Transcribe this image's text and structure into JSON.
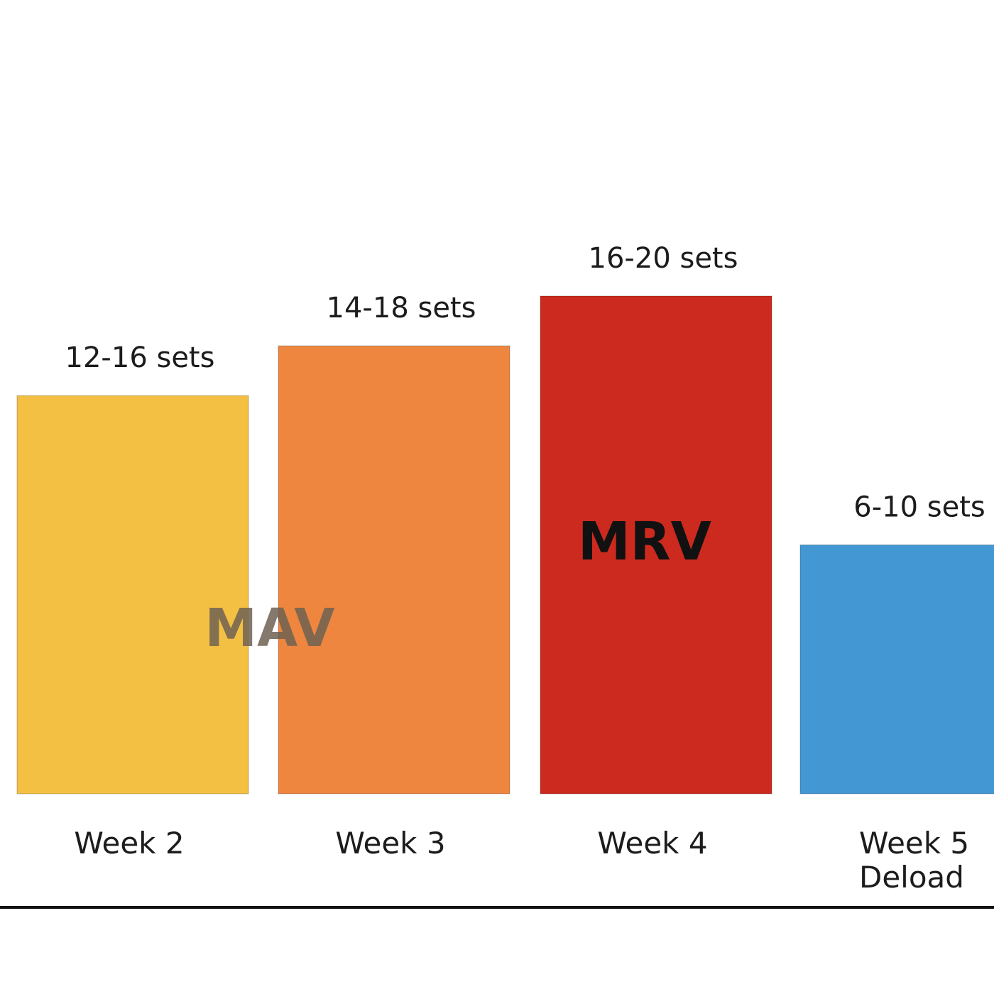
{
  "chart_data": {
    "type": "bar",
    "categories": [
      "Week 2",
      "Week 3",
      "Week 4",
      "Week 5 Deload"
    ],
    "category_lines": [
      [
        "Week 2"
      ],
      [
        "Week 3"
      ],
      [
        "Week 4"
      ],
      [
        "Week 5",
        "Deload"
      ]
    ],
    "values": [
      16,
      18,
      20,
      10
    ],
    "value_labels": [
      "12-16 sets",
      "14-18 sets",
      "16-20 sets",
      "6-10 sets"
    ],
    "colors": [
      "#f4c043",
      "#ee8640",
      "#cc2a1e",
      "#4398d3"
    ],
    "ylim": [
      0,
      20.5
    ],
    "annotations": [
      {
        "text": "MAV",
        "near": "Week 2 / Week 3",
        "color": "#6f6252"
      },
      {
        "text": "MRV",
        "near": "Week 4",
        "color": "#111111"
      }
    ],
    "title": "",
    "xlabel": "",
    "ylabel": "",
    "grid": false,
    "legend": "none"
  }
}
